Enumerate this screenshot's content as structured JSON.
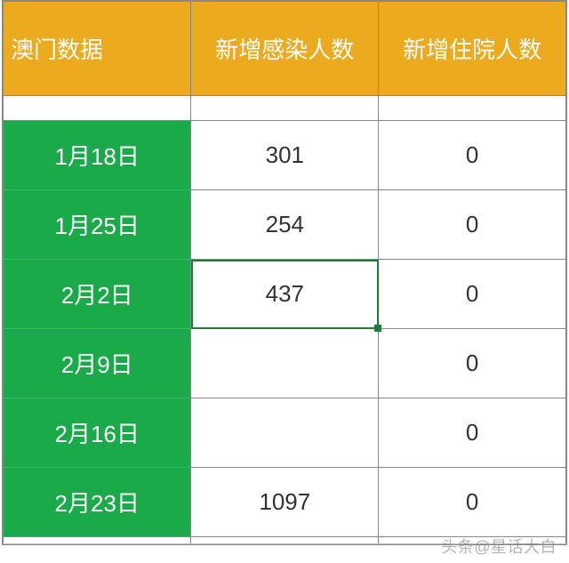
{
  "table": {
    "type": "table",
    "header_bg": "#ecab1e",
    "header_fg": "#ffffff",
    "rowhead_bg": "#1aaa4a",
    "rowhead_fg": "#ffffff",
    "cell_bg": "#ffffff",
    "cell_fg": "#333333",
    "border_color": "#888888",
    "selection_color": "#1a7f37",
    "header_fontsize": 26,
    "cell_fontsize": 26,
    "col_widths_pct": [
      33.4,
      33.3,
      33.3
    ],
    "columns": [
      "澳门数据",
      "新增感染人数",
      "新增住院人数"
    ],
    "rows": [
      {
        "date": "1月18日",
        "new_infections": "301",
        "new_hospital": "0"
      },
      {
        "date": "1月25日",
        "new_infections": "254",
        "new_hospital": "0"
      },
      {
        "date": "2月2日",
        "new_infections": "437",
        "new_hospital": "0"
      },
      {
        "date": "2月9日",
        "new_infections": "",
        "new_hospital": "0"
      },
      {
        "date": "2月16日",
        "new_infections": "",
        "new_hospital": "0"
      },
      {
        "date": "2月23日",
        "new_infections": "1097",
        "new_hospital": "0"
      }
    ],
    "selected_cell": {
      "row": 2,
      "col": 1
    }
  },
  "watermark": "头条@星话大白"
}
